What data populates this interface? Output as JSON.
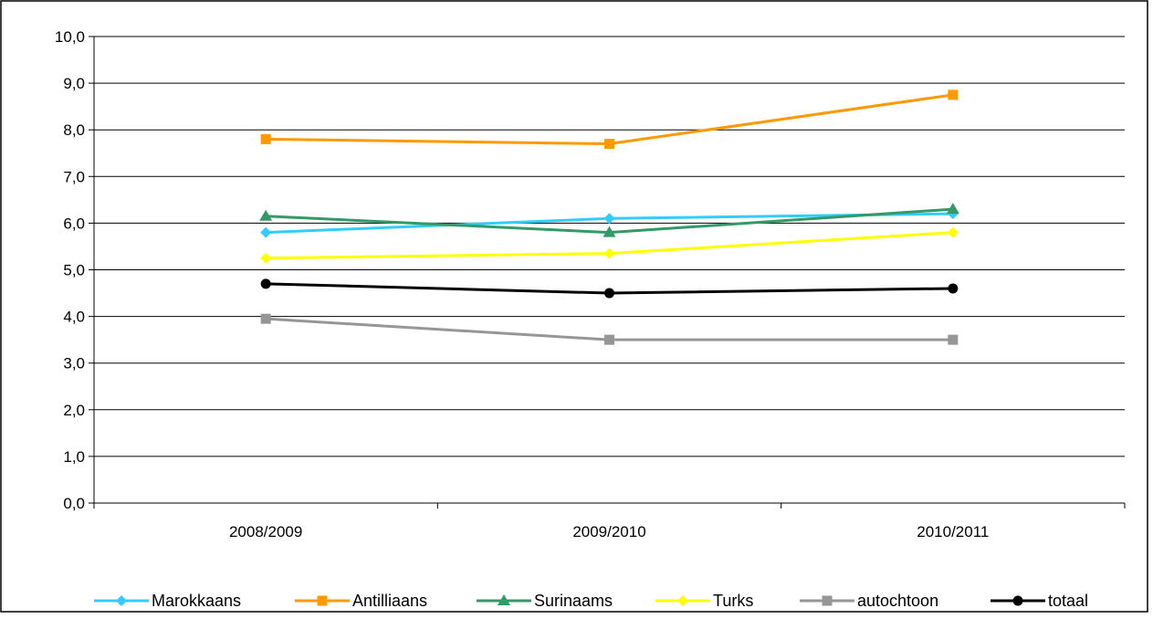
{
  "chart_data": {
    "type": "line",
    "title": "",
    "xlabel": "",
    "ylabel": "",
    "categories": [
      "2008/2009",
      "2009/2010",
      "2010/2011"
    ],
    "ylim": [
      0,
      10
    ],
    "y_ticks": [
      0,
      1,
      2,
      3,
      4,
      5,
      6,
      7,
      8,
      9,
      10
    ],
    "y_tick_labels": [
      "0,0",
      "1,0",
      "2,0",
      "3,0",
      "4,0",
      "5,0",
      "6,0",
      "7,0",
      "8,0",
      "9,0",
      "10,0"
    ],
    "grid": true,
    "legend_position": "bottom",
    "series": [
      {
        "name": "Marokkaans",
        "values": [
          5.8,
          6.1,
          6.2
        ],
        "color": "#33CCFF",
        "marker": "diamond"
      },
      {
        "name": "Antilliaans",
        "values": [
          7.8,
          7.7,
          8.75
        ],
        "color": "#FF9900",
        "marker": "square"
      },
      {
        "name": "Surinaams",
        "values": [
          6.15,
          5.8,
          6.3
        ],
        "color": "#339966",
        "marker": "triangle"
      },
      {
        "name": "Turks",
        "values": [
          5.25,
          5.35,
          5.8
        ],
        "color": "#FFFF00",
        "marker": "diamond"
      },
      {
        "name": "autochtoon",
        "values": [
          3.95,
          3.5,
          3.5
        ],
        "color": "#969696",
        "marker": "square"
      },
      {
        "name": "totaal",
        "values": [
          4.7,
          4.5,
          4.6
        ],
        "color": "#000000",
        "marker": "circle"
      }
    ]
  }
}
